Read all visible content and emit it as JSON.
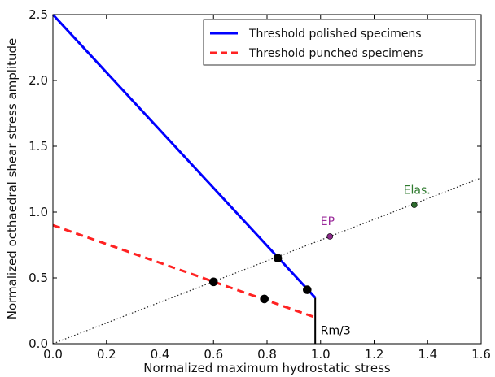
{
  "chart_data": {
    "type": "line",
    "xlabel": "Normalized maximum hydrostatic stress",
    "ylabel": "Normalized octhaedral shear stress amplitude",
    "xlim": [
      0.0,
      1.6
    ],
    "ylim": [
      0.0,
      2.5
    ],
    "xticks": [
      "0.0",
      "0.2",
      "0.4",
      "0.6",
      "0.8",
      "1.0",
      "1.2",
      "1.4",
      "1.6"
    ],
    "yticks": [
      "0.0",
      "0.5",
      "1.0",
      "1.5",
      "2.0",
      "2.5"
    ],
    "grid": false,
    "legend_position": "top-right",
    "series": [
      {
        "name": "Threshold polished specimens",
        "color": "#0000ff",
        "style": "solid",
        "points": [
          [
            0.0,
            2.5
          ],
          [
            0.98,
            0.35
          ]
        ]
      },
      {
        "name": "Threshold punched specimens",
        "color": "#ff2222",
        "style": "dashed",
        "points": [
          [
            0.0,
            0.9
          ],
          [
            0.98,
            0.2
          ]
        ]
      }
    ],
    "cutoff_line": {
      "color": "#000000",
      "points": [
        [
          0.98,
          0.35
        ],
        [
          0.98,
          0.0
        ]
      ],
      "label": "Rm/3"
    },
    "loading_path": {
      "color": "#222222",
      "style": "dotted",
      "points": [
        [
          0.0,
          0.0
        ],
        [
          1.6,
          1.26
        ]
      ]
    },
    "markers": [
      {
        "x": 0.6,
        "y": 0.47,
        "color": "#000000"
      },
      {
        "x": 0.79,
        "y": 0.34,
        "color": "#000000"
      },
      {
        "x": 0.84,
        "y": 0.65,
        "color": "#000000"
      },
      {
        "x": 0.95,
        "y": 0.41,
        "color": "#000000"
      },
      {
        "x": 1.035,
        "y": 0.815,
        "color": "#8a2a8a"
      },
      {
        "x": 1.35,
        "y": 1.055,
        "color": "#2e6b2e"
      }
    ],
    "annotations": [
      {
        "text": "EP",
        "x": 1.0,
        "y": 0.9,
        "color": "#9b2c9b"
      },
      {
        "text": "Elas.",
        "x": 1.31,
        "y": 1.14,
        "color": "#2e7a2e"
      },
      {
        "text": "Rm/3",
        "x": 1.0,
        "y": 0.07,
        "color": "#000000"
      }
    ]
  }
}
